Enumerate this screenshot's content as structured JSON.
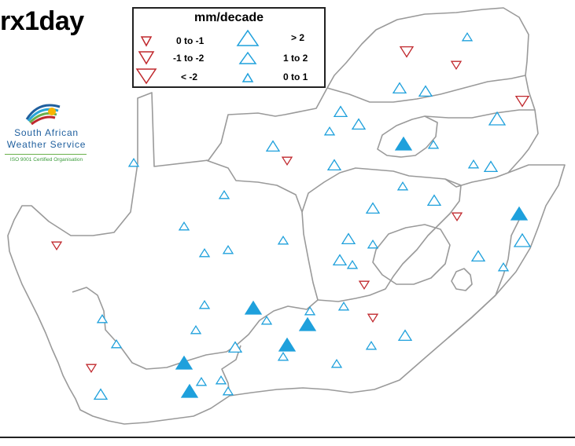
{
  "title": "rx1day",
  "logo": {
    "line1": "South African",
    "line2": "Weather Service",
    "cert": "ISO 9001 Certified Organisation"
  },
  "legend": {
    "title": "mm/decade",
    "items": [
      {
        "label": "0 to -1",
        "direction": "down",
        "size": "small",
        "color": "#c0282d"
      },
      {
        "label": "-1 to -2",
        "direction": "down",
        "size": "medium",
        "color": "#c0282d"
      },
      {
        "label": "< -2",
        "direction": "down",
        "size": "large",
        "color": "#c0282d"
      },
      {
        "label": "> 2",
        "direction": "up",
        "size": "large",
        "color": "#1ea0dc"
      },
      {
        "label": "1 to 2",
        "direction": "up",
        "size": "medium",
        "color": "#1ea0dc"
      },
      {
        "label": "0 to 1",
        "direction": "up",
        "size": "small",
        "color": "#1ea0dc"
      }
    ]
  },
  "colors": {
    "increase": "#1ea0dc",
    "decrease": "#c0282d",
    "borders": "#9a9a9a",
    "significant_fill": "#1ea0dc"
  },
  "marker_encoding": "up triangle = increasing trend, down triangle = decreasing trend, filled = significant"
}
